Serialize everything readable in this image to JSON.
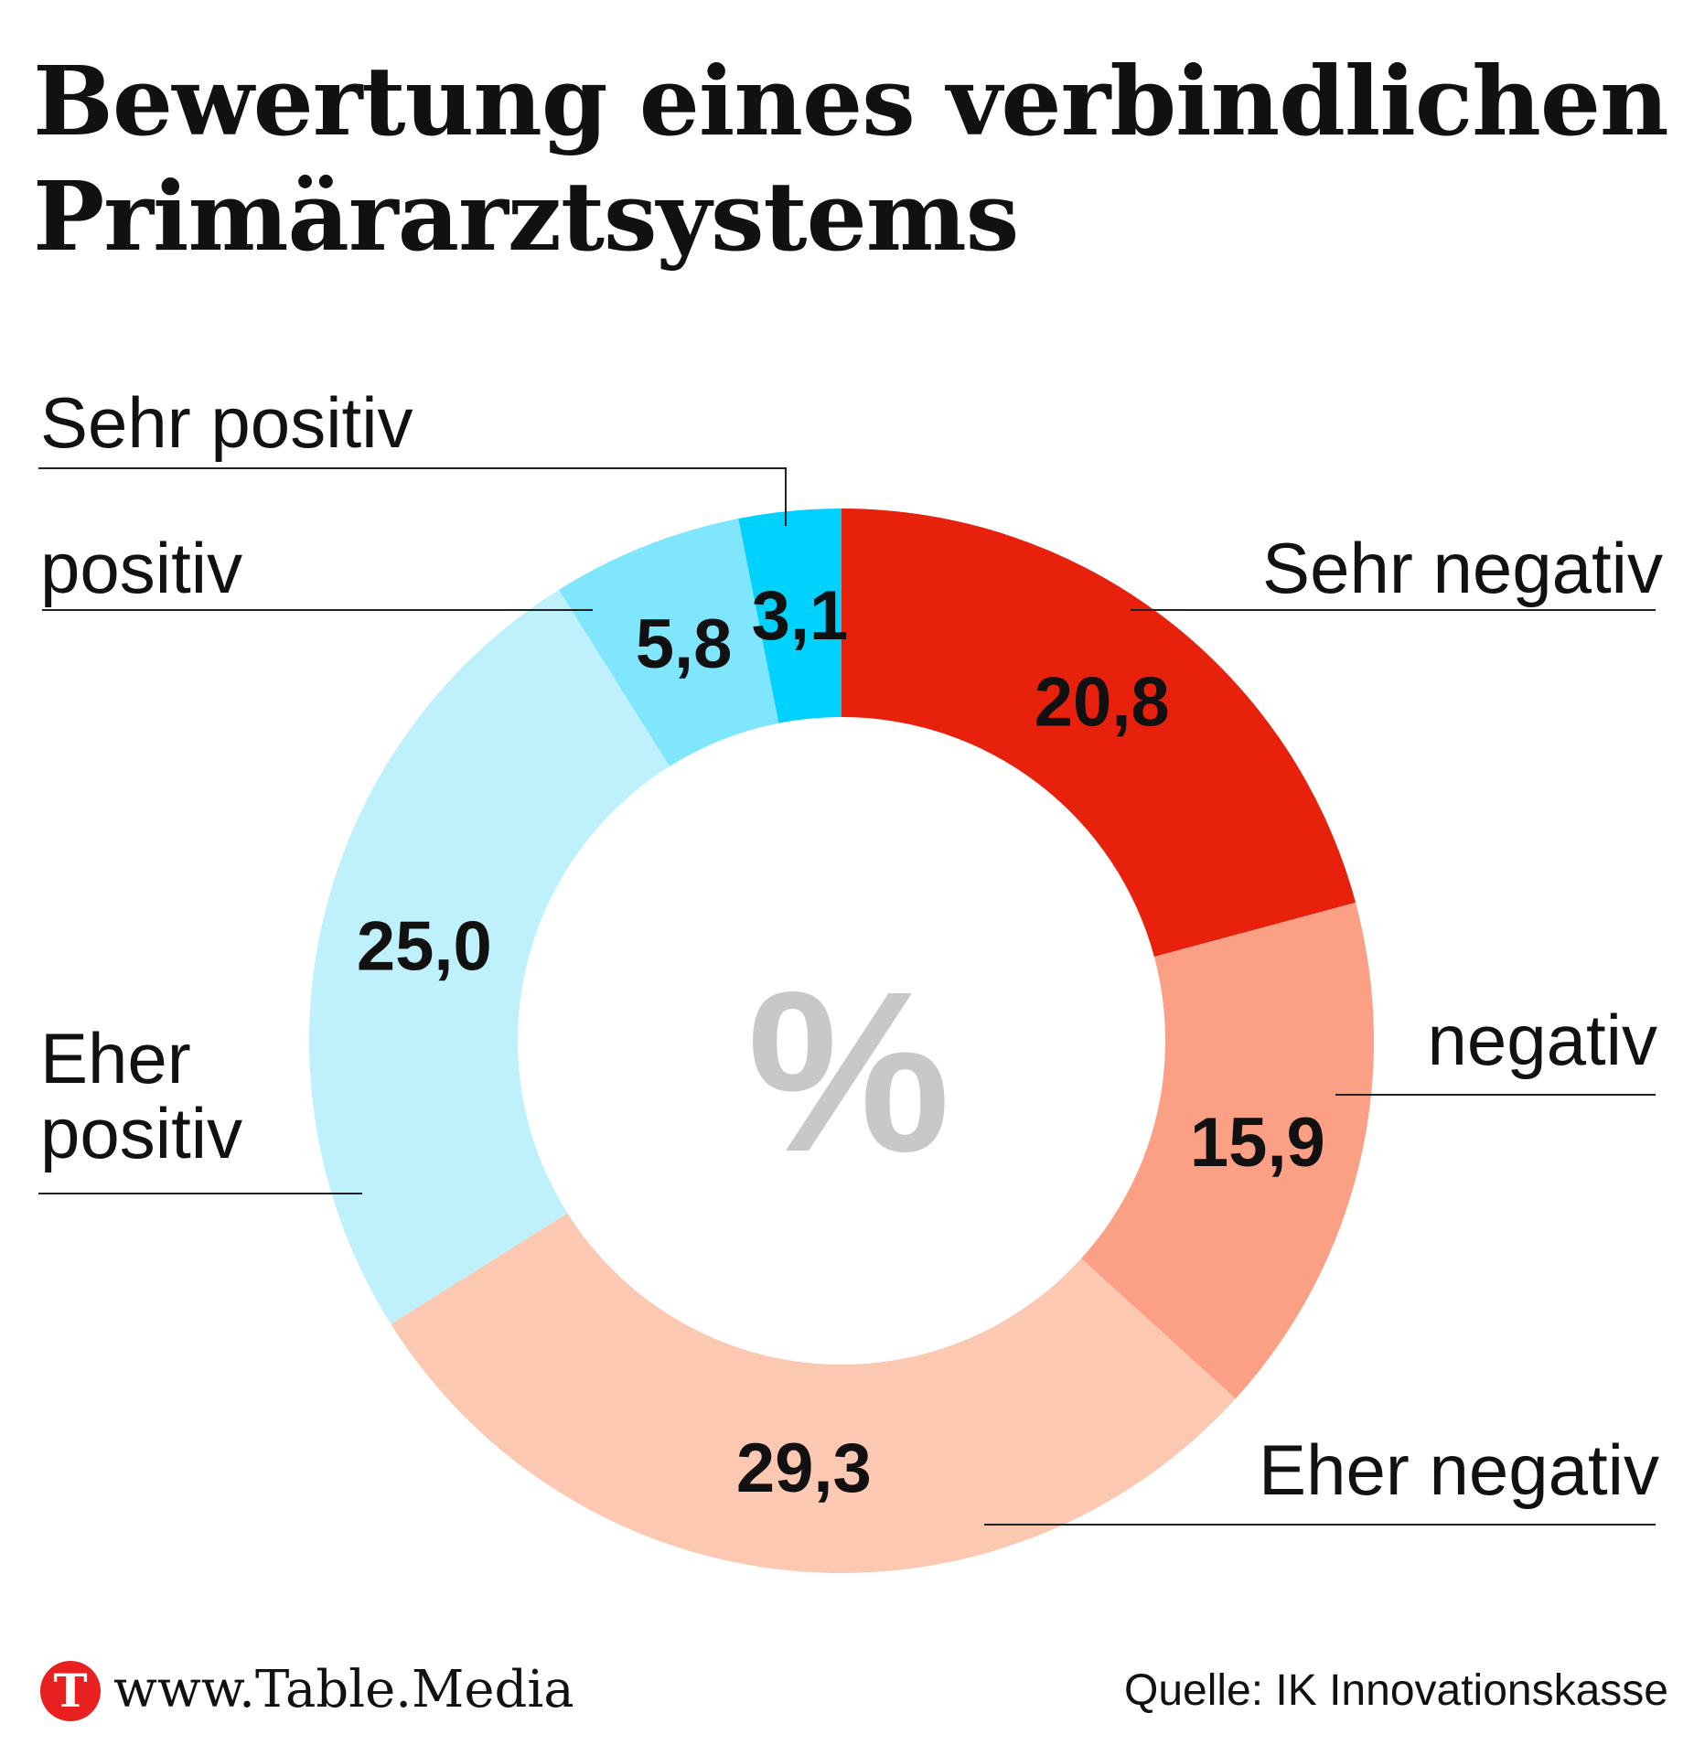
{
  "chart_data": {
    "type": "pie",
    "title": "Bewertung eines verbindlichen Primärarztsystems",
    "center_label": "%",
    "slices": [
      {
        "label": "Sehr negativ",
        "value": 20.8,
        "display": "20,8",
        "color": "#e8210c"
      },
      {
        "label": "negativ",
        "value": 15.9,
        "display": "15,9",
        "color": "#fca085"
      },
      {
        "label": "Eher negativ",
        "value": 29.3,
        "display": "29,3",
        "color": "#fdc8b1"
      },
      {
        "label": "Eher positiv",
        "value": 25.0,
        "display": "25,0",
        "color": "#bff1fd"
      },
      {
        "label": "positiv",
        "value": 5.8,
        "display": "5,8",
        "color": "#80e6fd"
      },
      {
        "label": "Sehr positiv",
        "value": 3.1,
        "display": "3,1",
        "color": "#00d1fd"
      }
    ]
  },
  "labels": {
    "sehr_positiv": "Sehr positiv",
    "positiv": "positiv",
    "eher_positiv_1": "Eher",
    "eher_positiv_2": "positiv",
    "sehr_negativ": "Sehr negativ",
    "negativ": "negativ",
    "eher_negativ": "Eher negativ"
  },
  "footer": {
    "logo_letter": "T",
    "site": "www.Table.Media",
    "source": "Quelle: IK Innovationskasse"
  }
}
